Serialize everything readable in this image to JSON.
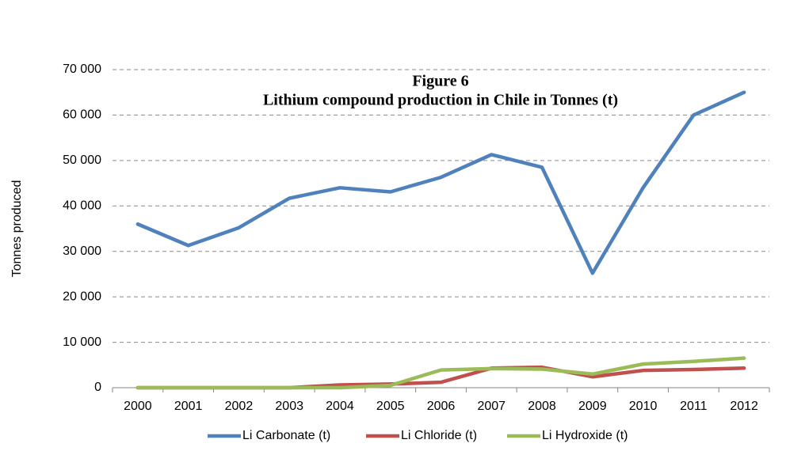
{
  "chart_data": {
    "type": "line",
    "title": "Figure 6",
    "subtitle": "Lithium compound production in Chile in Tonnes (t)",
    "y_label": "Tonnes produced",
    "categories": [
      "2000",
      "2001",
      "2002",
      "2003",
      "2004",
      "2005",
      "2006",
      "2007",
      "2008",
      "2009",
      "2010",
      "2011",
      "2012"
    ],
    "series": [
      {
        "name": "Li Carbonate (t)",
        "color": "#4f81bd",
        "values": [
          36000,
          31300,
          35200,
          41700,
          44000,
          43100,
          46300,
          51300,
          48500,
          25200,
          44000,
          60000,
          65000
        ]
      },
      {
        "name": "Li Chloride (t)",
        "color": "#c0504d",
        "values": [
          0,
          0,
          0,
          0,
          600,
          800,
          1200,
          4300,
          4500,
          2400,
          3800,
          4000,
          4300
        ]
      },
      {
        "name": "Li Hydroxide (t)",
        "color": "#9bbb59",
        "values": [
          0,
          0,
          0,
          0,
          0,
          500,
          3900,
          4200,
          4100,
          3000,
          5200,
          5800,
          6500
        ]
      }
    ],
    "ylim": [
      0,
      70000
    ],
    "yticks": [
      0,
      {
        "value": 10000,
        "label": "10 000"
      },
      {
        "value": 20000,
        "label": "20 000"
      },
      {
        "value": 30000,
        "label": "30 000"
      },
      {
        "value": 40000,
        "label": "40 000"
      },
      {
        "value": 50000,
        "label": "50 000"
      },
      {
        "value": 60000,
        "label": "60 000"
      },
      {
        "value": 70000,
        "label": "70 000"
      }
    ],
    "grid": true,
    "legend": "bottom"
  }
}
